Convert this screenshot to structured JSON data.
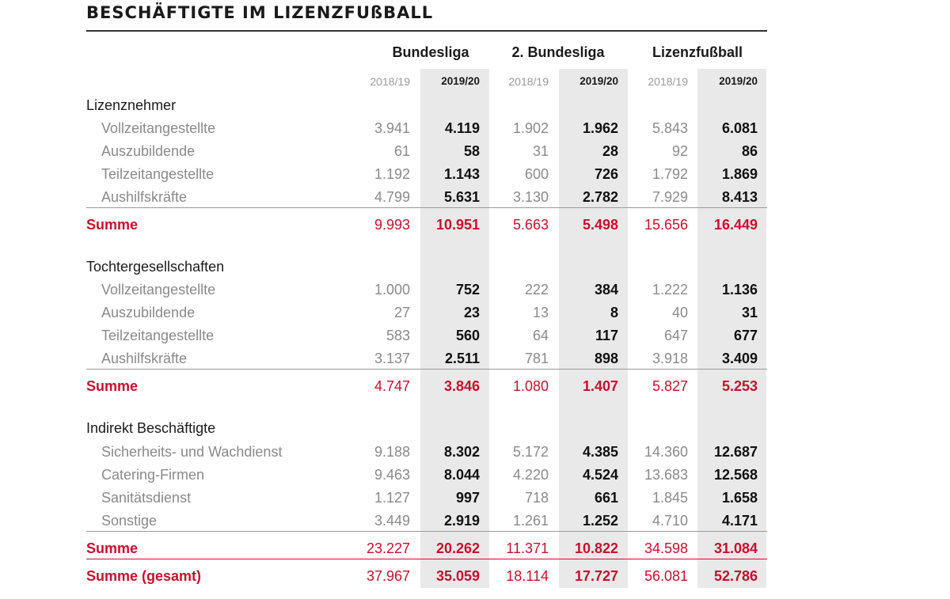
{
  "title": "BESCHÄFTIGTE IM LIZENZFUßBALL",
  "groups": [
    "Bundesliga",
    "2. Bundesliga",
    "Lizenzfußball"
  ],
  "seasons": {
    "prev": "2018/19",
    "cur": "2019/20"
  },
  "rows": [
    {
      "type": "section",
      "label": "Lizenznehmer"
    },
    {
      "type": "item",
      "label": "Vollzeitangestellte",
      "values": [
        "3.941",
        "4.119",
        "1.902",
        "1.962",
        "5.843",
        "6.081"
      ]
    },
    {
      "type": "item",
      "label": "Auszubildende",
      "values": [
        "61",
        "58",
        "31",
        "28",
        "92",
        "86"
      ]
    },
    {
      "type": "item",
      "label": "Teilzeitangestellte",
      "values": [
        "1.192",
        "1.143",
        "600",
        "726",
        "1.792",
        "1.869"
      ]
    },
    {
      "type": "item",
      "label": "Aushilfskräfte",
      "values": [
        "4.799",
        "5.631",
        "3.130",
        "2.782",
        "7.929",
        "8.413"
      ]
    },
    {
      "type": "sum",
      "label": "Summe",
      "values": [
        "9.993",
        "10.951",
        "5.663",
        "5.498",
        "15.656",
        "16.449"
      ]
    },
    {
      "type": "section",
      "label": "Tochtergesellschaften"
    },
    {
      "type": "item",
      "label": "Vollzeitangestellte",
      "values": [
        "1.000",
        "752",
        "222",
        "384",
        "1.222",
        "1.136"
      ]
    },
    {
      "type": "item",
      "label": "Auszubildende",
      "values": [
        "27",
        "23",
        "13",
        "8",
        "40",
        "31"
      ]
    },
    {
      "type": "item",
      "label": "Teilzeitangestellte",
      "values": [
        "583",
        "560",
        "64",
        "117",
        "647",
        "677"
      ]
    },
    {
      "type": "item",
      "label": "Aushilfskräfte",
      "values": [
        "3.137",
        "2.511",
        "781",
        "898",
        "3.918",
        "3.409"
      ]
    },
    {
      "type": "sum",
      "label": "Summe",
      "values": [
        "4.747",
        "3.846",
        "1.080",
        "1.407",
        "5.827",
        "5.253"
      ]
    },
    {
      "type": "section",
      "label": "Indirekt Beschäftigte"
    },
    {
      "type": "item",
      "label": "Sicherheits- und Wachdienst",
      "values": [
        "9.188",
        "8.302",
        "5.172",
        "4.385",
        "14.360",
        "12.687"
      ]
    },
    {
      "type": "item",
      "label": "Catering-Firmen",
      "values": [
        "9.463",
        "8.044",
        "4.220",
        "4.524",
        "13.683",
        "12.568"
      ]
    },
    {
      "type": "item",
      "label": "Sanitätsdienst",
      "values": [
        "1.127",
        "997",
        "718",
        "661",
        "1.845",
        "1.658"
      ]
    },
    {
      "type": "item",
      "label": "Sonstige",
      "values": [
        "3.449",
        "2.919",
        "1.261",
        "1.252",
        "4.710",
        "4.171"
      ]
    },
    {
      "type": "sum",
      "label": "Summe",
      "values": [
        "23.227",
        "20.262",
        "11.371",
        "10.822",
        "34.598",
        "31.084"
      ]
    },
    {
      "type": "sum",
      "label": "Summe (gesamt)",
      "values": [
        "37.967",
        "35.059",
        "18.114",
        "17.727",
        "56.081",
        "52.786"
      ]
    }
  ],
  "colors": {
    "accent": "#c8102e",
    "shade": "#e9e9e9",
    "muted": "#8a8a8a"
  }
}
